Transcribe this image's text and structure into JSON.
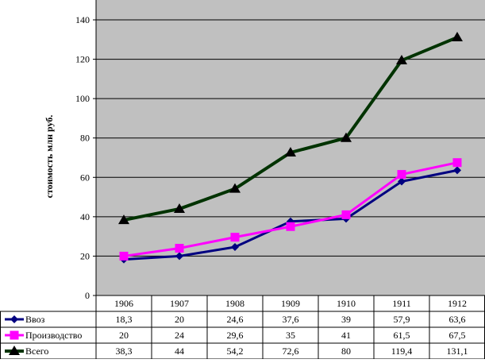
{
  "chart_data": {
    "type": "line",
    "ylabel": "стоимость млн  руб.",
    "ylim": [
      0,
      140
    ],
    "yticks": [
      0,
      20,
      40,
      60,
      80,
      100,
      120,
      140
    ],
    "grid": true,
    "plot_background": "#c0c0c0",
    "categories": [
      "1906",
      "1907",
      "1908",
      "1909",
      "1910",
      "1911",
      "1912"
    ],
    "series": [
      {
        "name": "Ввоз",
        "color": "#000080",
        "marker": "diamond",
        "values": [
          18.3,
          20,
          24.6,
          37.6,
          39,
          57.9,
          63.6
        ],
        "labels": [
          "18,3",
          "20",
          "24,6",
          "37,6",
          "39",
          "57,9",
          "63,6"
        ]
      },
      {
        "name": "Производство",
        "color": "#ff00ff",
        "marker": "square",
        "values": [
          20,
          24,
          29.6,
          35,
          41,
          61.5,
          67.5
        ],
        "labels": [
          "20",
          "24",
          "29,6",
          "35",
          "41",
          "61,5",
          "67,5"
        ]
      },
      {
        "name": "Всего",
        "color": "#003300",
        "marker": "triangle",
        "values": [
          38.3,
          44,
          54.2,
          72.6,
          80,
          119.4,
          131.1
        ],
        "labels": [
          "38,3",
          "44",
          "54,2",
          "72,6",
          "80",
          "119,4",
          "131,1"
        ]
      }
    ],
    "legend": "data-table-left"
  }
}
